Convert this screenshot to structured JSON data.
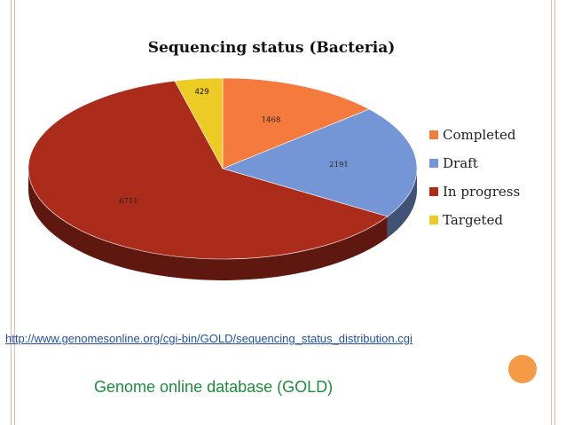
{
  "slide": {
    "source_url": "http://www.genomesonline.org/cgi-bin/GOLD/sequencing_status_distribution.cgi",
    "caption": "Genome online database (GOLD)",
    "accent_color": "#f59a45",
    "frame_line_color": "#e7b8a8"
  },
  "chart_data": {
    "type": "pie",
    "style": "3d",
    "title": "Sequencing status (Bacteria)",
    "legend_position": "right",
    "categories": [
      "Completed",
      "Draft",
      "In progress",
      "Targeted"
    ],
    "values": [
      1468,
      2191,
      6711,
      429
    ],
    "colors": [
      "#f47a3d",
      "#7596d6",
      "#ac2c1c",
      "#eccb25"
    ],
    "data_labels": [
      "1468",
      "2191",
      "6711",
      "429"
    ]
  }
}
